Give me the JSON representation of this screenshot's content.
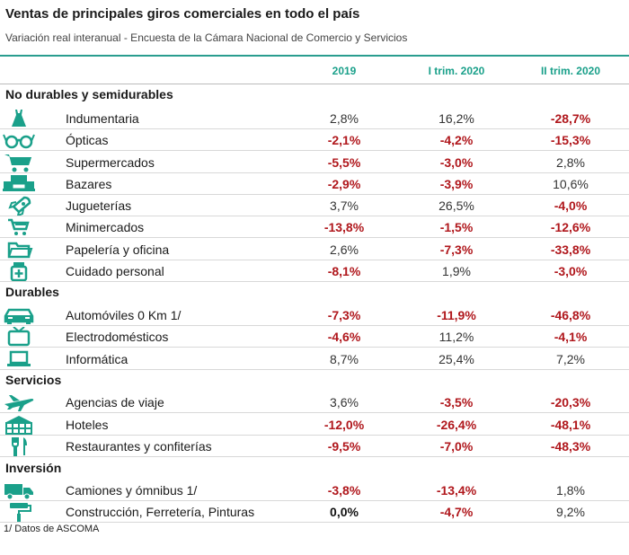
{
  "title": "Ventas de principales giros comerciales en todo el país",
  "subtitle": "Variación real interanual - Encuesta de la Cámara Nacional de Comercio y Servicios",
  "columns": [
    "2019",
    "I trim. 2020",
    "II trim. 2020"
  ],
  "accent_color": "#1aa08a",
  "negative_color": "#b0171c",
  "sections": [
    {
      "name": "No durables y semidurables",
      "rows": [
        {
          "icon": "dress-icon",
          "label": "Indumentaria",
          "values": [
            "2,8%",
            "16,2%",
            "-28,7%"
          ]
        },
        {
          "icon": "glasses-icon",
          "label": "Ópticas",
          "values": [
            "-2,1%",
            "-4,2%",
            "-15,3%"
          ]
        },
        {
          "icon": "shopping-cart-icon",
          "label": "Supermercados",
          "values": [
            "-5,5%",
            "-3,0%",
            "2,8%"
          ]
        },
        {
          "icon": "shelf-icon",
          "label": "Bazares",
          "values": [
            "-2,9%",
            "-3,9%",
            "10,6%"
          ]
        },
        {
          "icon": "rocket-toy-icon",
          "label": "Jugueterías",
          "values": [
            "3,7%",
            "26,5%",
            "-4,0%"
          ]
        },
        {
          "icon": "small-cart-icon",
          "label": "Minimercados",
          "values": [
            "-13,8%",
            "-1,5%",
            "-12,6%"
          ]
        },
        {
          "icon": "folder-icon",
          "label": "Papelería y oficina",
          "values": [
            "2,6%",
            "-7,3%",
            "-33,8%"
          ]
        },
        {
          "icon": "medicine-jar-icon",
          "label": "Cuidado personal",
          "values": [
            "-8,1%",
            "1,9%",
            "-3,0%"
          ]
        }
      ]
    },
    {
      "name": "Durables",
      "rows": [
        {
          "icon": "car-icon",
          "label": "Automóviles 0 Km 1/",
          "values": [
            "-7,3%",
            "-11,9%",
            "-46,8%"
          ]
        },
        {
          "icon": "tv-icon",
          "label": "Electrodomésticos",
          "values": [
            "-4,6%",
            "11,2%",
            "-4,1%"
          ]
        },
        {
          "icon": "laptop-icon",
          "label": "Informática",
          "values": [
            "8,7%",
            "25,4%",
            "7,2%"
          ]
        }
      ]
    },
    {
      "name": "Servicios",
      "rows": [
        {
          "icon": "airplane-icon",
          "label": "Agencias de viaje",
          "values": [
            "3,6%",
            "-3,5%",
            "-20,3%"
          ]
        },
        {
          "icon": "hotel-icon",
          "label": "Hoteles",
          "values": [
            "-12,0%",
            "-26,4%",
            "-48,1%"
          ]
        },
        {
          "icon": "cutlery-icon",
          "label": "Restaurantes y confiterías",
          "values": [
            "-9,5%",
            "-7,0%",
            "-48,3%"
          ]
        }
      ]
    },
    {
      "name": "Inversión",
      "rows": [
        {
          "icon": "truck-icon",
          "label": "Camiones y ómnibus 1/",
          "values": [
            "-3,8%",
            "-13,4%",
            "1,8%"
          ]
        },
        {
          "icon": "paint-roller-icon",
          "label": "Construcción, Ferretería, Pinturas",
          "values": [
            "0,0%",
            "-4,7%",
            "9,2%"
          ]
        }
      ]
    }
  ],
  "footnote": "1/ Datos de ASCOMA"
}
